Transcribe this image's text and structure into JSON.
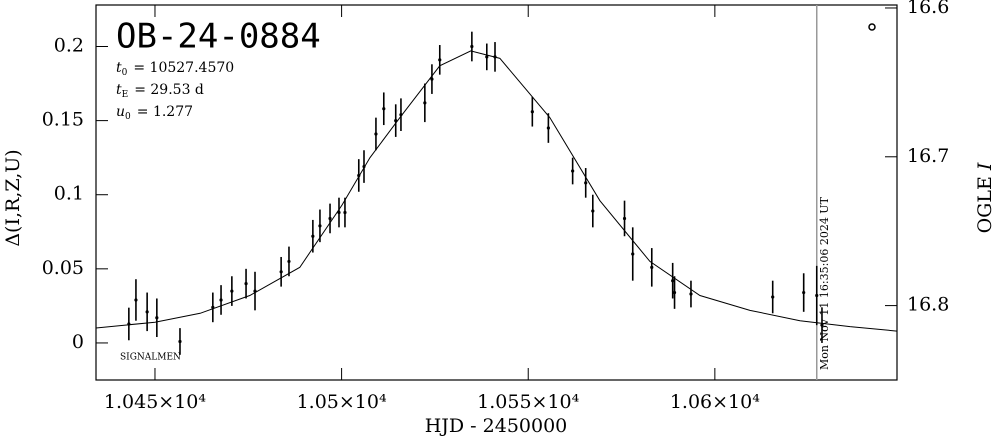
{
  "chart_data": {
    "type": "scatter",
    "title": "OB-24-0884",
    "params": [
      {
        "symbol": "t",
        "sub": "0",
        "text": "= 10527.4570"
      },
      {
        "symbol": "t",
        "sub": "E",
        "text": "= 29.53  d"
      },
      {
        "symbol": "u",
        "sub": "0",
        "text": "= 1.277"
      }
    ],
    "note": "SIGNALMEN",
    "timestamp": "Mon Nov 11 16:35:06 2024 UT",
    "timestamp_x": 10627.3,
    "xlabel": "HJD - 2450000",
    "ylabel": "Δ(I,R,Z,U)",
    "y2label": "OGLE",
    "y2label_band": "I",
    "xlim": [
      10434.2,
      10648.8
    ],
    "ylim": [
      -0.025,
      0.228
    ],
    "y2lim": [
      16.85,
      16.598
    ],
    "xticks": [
      {
        "value": 10450,
        "label": "1.045×10⁴"
      },
      {
        "value": 10500,
        "label": "1.05×10⁴"
      },
      {
        "value": 10550,
        "label": "1.055×10⁴"
      },
      {
        "value": 10600,
        "label": "1.06×10⁴"
      }
    ],
    "yticks": [
      0,
      0.05,
      0.1,
      0.15,
      0.2
    ],
    "y2ticks": [
      16.6,
      16.7,
      16.8
    ],
    "color": "#000000",
    "points": {
      "x": [
        10443.0,
        10444.9,
        10447.9,
        10450.5,
        10456.7,
        10465.5,
        10467.7,
        10470.6,
        10474.4,
        10476.8,
        10483.8,
        10485.9,
        10492.3,
        10494.2,
        10496.9,
        10499.3,
        10500.9,
        10504.6,
        10506.0,
        10509.2,
        10511.3,
        10514.5,
        10515.9,
        10522.3,
        10524.2,
        10526.3,
        10534.9,
        10538.9,
        10541.1,
        10551.1,
        10555.4,
        10561.9,
        10565.4,
        10567.3,
        10575.8,
        10578.0,
        10583.1,
        10588.7,
        10589.2,
        10593.6,
        10615.5,
        10623.8,
        10627.3,
        10628.7
      ],
      "y": [
        0.0128,
        0.029,
        0.021,
        0.017,
        0.001,
        0.024,
        0.029,
        0.035,
        0.04,
        0.035,
        0.048,
        0.055,
        0.072,
        0.079,
        0.084,
        0.088,
        0.088,
        0.113,
        0.119,
        0.141,
        0.158,
        0.15,
        0.154,
        0.162,
        0.178,
        0.191,
        0.2,
        0.193,
        0.193,
        0.156,
        0.145,
        0.116,
        0.108,
        0.089,
        0.084,
        0.06,
        0.051,
        0.042,
        0.034,
        0.033,
        0.031,
        0.034,
        0.032,
        0.012
      ],
      "err": [
        0.011,
        0.014,
        0.013,
        0.013,
        0.009,
        0.01,
        0.01,
        0.01,
        0.01,
        0.013,
        0.01,
        0.01,
        0.011,
        0.011,
        0.01,
        0.01,
        0.01,
        0.011,
        0.011,
        0.011,
        0.011,
        0.011,
        0.011,
        0.013,
        0.01,
        0.01,
        0.01,
        0.009,
        0.01,
        0.01,
        0.01,
        0.009,
        0.01,
        0.011,
        0.012,
        0.018,
        0.013,
        0.012,
        0.011,
        0.009,
        0.011,
        0.013,
        0.02,
        0.012
      ]
    },
    "model": {
      "x": [
        10434.2,
        10450,
        10462.1,
        10475.4,
        10488.8,
        10500.1,
        10507.6,
        10515.6,
        10526.3,
        10534.6,
        10542.4,
        10555.8,
        10569.2,
        10582.6,
        10596.0,
        10609.4,
        10622.8,
        10636.2,
        10648.8
      ],
      "y": [
        0.0101,
        0.014,
        0.02,
        0.032,
        0.051,
        0.093,
        0.125,
        0.152,
        0.187,
        0.197,
        0.192,
        0.152,
        0.096,
        0.055,
        0.032,
        0.022,
        0.015,
        0.011,
        0.008
      ]
    }
  }
}
